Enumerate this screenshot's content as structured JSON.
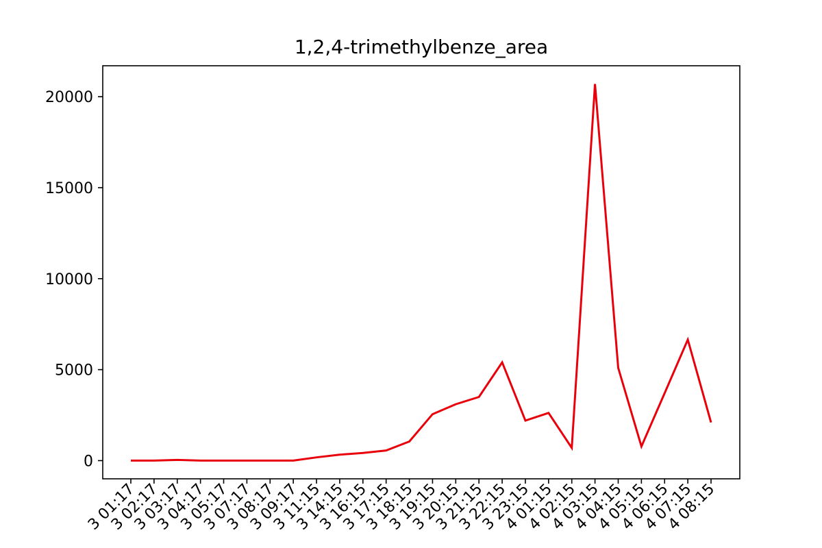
{
  "chart_data": {
    "type": "line",
    "title": "1,2,4-trimethylbenze_area",
    "xlabel": "",
    "ylabel": "",
    "ylim": [
      -1000,
      21700
    ],
    "yticks": [
      0,
      5000,
      10000,
      15000,
      20000
    ],
    "x": [
      "3 01:17",
      "3 02:17",
      "3 03:17",
      "3 04:17",
      "3 05:17",
      "3 07:17",
      "3 08:17",
      "3 09:17",
      "3 11:15",
      "3 14:15",
      "3 16:15",
      "3 17:15",
      "3 18:15",
      "3 19:15",
      "3 20:15",
      "3 21:15",
      "3 22:15",
      "3 23:15",
      "4 01:15",
      "4 02:15",
      "4 03:15",
      "4 04:15",
      "4 05:15",
      "4 06:15",
      "4 07:15",
      "4 08:15"
    ],
    "series": [
      {
        "color": "#e8000b",
        "values": [
          0,
          0,
          40,
          0,
          0,
          0,
          0,
          0,
          180,
          330,
          420,
          560,
          1050,
          2550,
          3100,
          3500,
          5400,
          2200,
          2620,
          700,
          20700,
          5100,
          780,
          3700,
          6650,
          2100
        ]
      }
    ],
    "grid": false,
    "legend": "none"
  }
}
